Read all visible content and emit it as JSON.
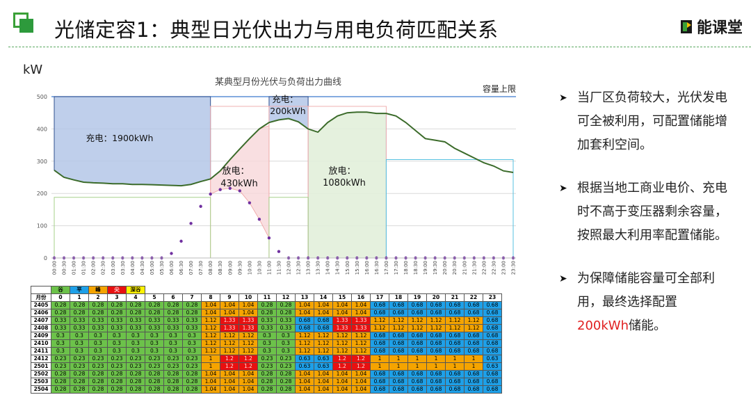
{
  "title": "光储定容1：典型日光伏出力与用电负荷匹配关系",
  "brand": {
    "name": "能课堂"
  },
  "chart": {
    "unit": "kW",
    "title": "某典型月份光伏与负荷出力曲线",
    "capacity_label": "容量上限",
    "annotations": {
      "charge1": "充电：1900kWh",
      "charge2_a": "充电：",
      "charge2_b": "200kWh",
      "discharge1_a": "放电：",
      "discharge1_b": "430kWh",
      "discharge2_a": "放电：",
      "discharge2_b": "1080kWh"
    }
  },
  "chart_data": {
    "type": "line",
    "title": "某典型月份光伏与负荷出力曲线",
    "ylabel": "kW",
    "ylim": [
      0,
      500
    ],
    "yticks": [
      "0",
      "100",
      "200",
      "300",
      "400",
      "500"
    ],
    "x": [
      "00:00",
      "00:30",
      "01:00",
      "01:30",
      "02:00",
      "02:30",
      "03:00",
      "03:30",
      "04:00",
      "04:30",
      "05:00",
      "05:30",
      "06:00",
      "06:30",
      "07:00",
      "07:30",
      "08:00",
      "08:30",
      "09:00",
      "09:30",
      "10:00",
      "10:30",
      "11:00",
      "11:30",
      "12:00",
      "12:30",
      "13:00",
      "13:30",
      "14:00",
      "14:30",
      "15:00",
      "15:30",
      "16:00",
      "16:30",
      "17:00",
      "17:30",
      "18:00",
      "18:30",
      "19:00",
      "19:30",
      "20:00",
      "20:30",
      "21:00",
      "21:30",
      "22:00",
      "22:30",
      "23:00",
      "23:30"
    ],
    "series": [
      {
        "values": [
          272,
          250,
          242,
          235,
          233,
          232,
          230,
          230,
          228,
          228,
          227,
          226,
          225,
          224,
          228,
          237,
          245,
          270,
          305,
          338,
          370,
          400,
          420,
          428,
          432,
          422,
          400,
          390,
          420,
          440,
          450,
          452,
          452,
          448,
          448,
          440,
          420,
          395,
          370,
          365,
          360,
          340,
          325,
          310,
          295,
          285,
          270,
          265
        ]
      },
      {
        "values": [
          0,
          0,
          0,
          0,
          0,
          0,
          0,
          0,
          0,
          0,
          0,
          0,
          14,
          52,
          107,
          160,
          198,
          212,
          216,
          208,
          171,
          120,
          62,
          20,
          0,
          0,
          0,
          0,
          0,
          0,
          0,
          0,
          0,
          0,
          0,
          0,
          0,
          0,
          0,
          0,
          0,
          0,
          0,
          0,
          0,
          0,
          0,
          0
        ]
      }
    ],
    "capacity_limit": 500
  },
  "tariff_table": {
    "legend": [
      "谷",
      "平",
      "峰",
      "尖",
      "深谷"
    ],
    "header_label": "月份",
    "hours": [
      "0",
      "1",
      "2",
      "3",
      "4",
      "5",
      "6",
      "7",
      "8",
      "9",
      "10",
      "11",
      "12",
      "13",
      "14",
      "15",
      "16",
      "17",
      "18",
      "19",
      "20",
      "21",
      "22",
      "23"
    ],
    "rows": [
      {
        "month": "2405",
        "vals": [
          "0.28",
          "0.28",
          "0.28",
          "0.28",
          "0.28",
          "0.28",
          "0.28",
          "0.28",
          "1.04",
          "1.04",
          "1.04",
          "0.28",
          "0.28",
          "1.04",
          "1.04",
          "1.04",
          "1.04",
          "0.68",
          "0.68",
          "0.68",
          "0.68",
          "0.68",
          "0.68",
          "0.68"
        ]
      },
      {
        "month": "2406",
        "vals": [
          "0.28",
          "0.28",
          "0.28",
          "0.28",
          "0.28",
          "0.28",
          "0.28",
          "0.28",
          "1.04",
          "1.04",
          "1.04",
          "0.28",
          "0.28",
          "1.04",
          "1.04",
          "1.04",
          "1.04",
          "0.68",
          "0.68",
          "0.68",
          "0.68",
          "0.68",
          "0.68",
          "0.68"
        ]
      },
      {
        "month": "2407",
        "vals": [
          "0.33",
          "0.33",
          "0.33",
          "0.33",
          "0.33",
          "0.33",
          "0.33",
          "0.33",
          "1.12",
          "1.33",
          "1.33",
          "0.33",
          "0.33",
          "0.68",
          "0.68",
          "1.33",
          "1.33",
          "1.12",
          "1.12",
          "1.12",
          "1.12",
          "1.12",
          "1.12",
          "0.68"
        ]
      },
      {
        "month": "2408",
        "vals": [
          "0.33",
          "0.33",
          "0.33",
          "0.33",
          "0.33",
          "0.33",
          "0.33",
          "0.33",
          "1.12",
          "1.33",
          "1.33",
          "0.33",
          "0.33",
          "0.68",
          "0.68",
          "1.33",
          "1.33",
          "1.12",
          "1.12",
          "1.12",
          "1.12",
          "1.12",
          "1.12",
          "0.68"
        ]
      },
      {
        "month": "2409",
        "vals": [
          "0.3",
          "0.3",
          "0.3",
          "0.3",
          "0.3",
          "0.3",
          "0.3",
          "0.3",
          "1.12",
          "1.12",
          "1.12",
          "0.3",
          "0.3",
          "1.12",
          "1.12",
          "1.12",
          "1.12",
          "0.68",
          "0.68",
          "0.68",
          "0.68",
          "0.68",
          "0.68",
          "0.68"
        ]
      },
      {
        "month": "2410",
        "vals": [
          "0.3",
          "0.3",
          "0.3",
          "0.3",
          "0.3",
          "0.3",
          "0.3",
          "0.3",
          "1.12",
          "1.12",
          "1.12",
          "0.3",
          "0.3",
          "1.12",
          "1.12",
          "1.12",
          "1.12",
          "0.68",
          "0.68",
          "0.68",
          "0.68",
          "0.68",
          "0.68",
          "0.68"
        ]
      },
      {
        "month": "2411",
        "vals": [
          "0.3",
          "0.3",
          "0.3",
          "0.3",
          "0.3",
          "0.3",
          "0.3",
          "0.3",
          "1.12",
          "1.12",
          "1.12",
          "0.3",
          "0.3",
          "1.12",
          "1.12",
          "1.12",
          "1.12",
          "0.68",
          "0.68",
          "0.68",
          "0.68",
          "0.68",
          "0.68",
          "0.68"
        ]
      },
      {
        "month": "2412",
        "vals": [
          "0.23",
          "0.23",
          "0.23",
          "0.23",
          "0.23",
          "0.23",
          "0.23",
          "0.23",
          "1",
          "1.2",
          "1.2",
          "0.23",
          "0.23",
          "0.63",
          "0.63",
          "1.2",
          "1.2",
          "1",
          "1",
          "1",
          "1",
          "1",
          "1",
          "0.63"
        ]
      },
      {
        "month": "2501",
        "vals": [
          "0.23",
          "0.23",
          "0.23",
          "0.23",
          "0.23",
          "0.23",
          "0.23",
          "0.23",
          "1",
          "1.2",
          "1.2",
          "0.23",
          "0.23",
          "0.63",
          "0.63",
          "1.2",
          "1.2",
          "1",
          "1",
          "1",
          "1",
          "1",
          "1",
          "0.63"
        ]
      },
      {
        "month": "2502",
        "vals": [
          "0.28",
          "0.28",
          "0.28",
          "0.28",
          "0.28",
          "0.28",
          "0.28",
          "0.28",
          "1.04",
          "1.04",
          "1.04",
          "0.28",
          "0.28",
          "1.04",
          "1.04",
          "1.04",
          "1.04",
          "0.68",
          "0.68",
          "0.68",
          "0.68",
          "0.68",
          "0.68",
          "0.68"
        ]
      },
      {
        "month": "2503",
        "vals": [
          "0.28",
          "0.28",
          "0.28",
          "0.28",
          "0.28",
          "0.28",
          "0.28",
          "0.28",
          "1.04",
          "1.04",
          "1.04",
          "0.28",
          "0.28",
          "1.04",
          "1.04",
          "1.04",
          "1.04",
          "0.68",
          "0.68",
          "0.68",
          "0.68",
          "0.68",
          "0.68",
          "0.68"
        ]
      },
      {
        "month": "2504",
        "vals": [
          "0.28",
          "0.28",
          "0.28",
          "0.28",
          "0.28",
          "0.28",
          "0.28",
          "0.28",
          "1.04",
          "1.04",
          "1.04",
          "0.28",
          "0.28",
          "1.04",
          "1.04",
          "1.04",
          "1.04",
          "0.68",
          "0.68",
          "0.68",
          "0.68",
          "0.68",
          "0.68",
          "0.68"
        ]
      }
    ]
  },
  "bullets": [
    {
      "text": "当厂区负荷较大，光伏发电可全被利用，可配置储能增加套利空间。"
    },
    {
      "text": "根据当地工商业电价、充电时不高于变压器剩余容量，按照最大利用率配置储能。"
    },
    {
      "text_a": "为保障储能容量可全部利用，最终选择配置",
      "text_red": "200kWh",
      "text_b": "储能。"
    }
  ],
  "colors": {
    "accent": "#2d9a3c",
    "load_line": "#3b6b2a",
    "pv_dots": "#7030a0",
    "charge_fill": "#b4c7e7",
    "discharge_fill": "#f8d7da",
    "discharge_fill2": "#e2efda",
    "highlight": "#e02020"
  }
}
